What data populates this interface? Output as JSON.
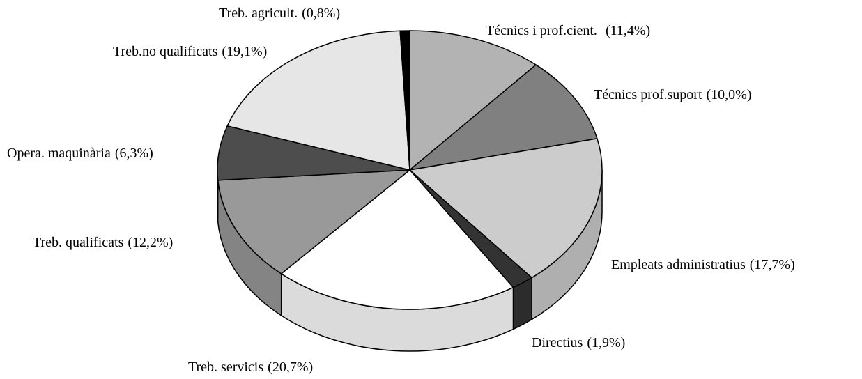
{
  "chart_data": {
    "type": "pie",
    "categories": [
      "Técnics i prof.cient.",
      "Técnics prof.suport",
      "Empleats administratius",
      "Directius",
      "Treb. servicis",
      "Treb. qualificats",
      "Opera. maquinària",
      "Treb.no qualificats",
      "Treb. agricult."
    ],
    "values": [
      11.4,
      10.0,
      17.7,
      1.9,
      20.7,
      12.2,
      6.3,
      19.1,
      0.8
    ],
    "value_labels": [
      "(11,4%)",
      "(10,0%)",
      "(17,7%)",
      "(1,9%)",
      "(20,7%)",
      "(12,2%)",
      "(6,3%)",
      "(19,1%)",
      "(0,8%)"
    ],
    "colors": [
      "#b3b3b3",
      "#808080",
      "#cccccc",
      "#333333",
      "#ffffff",
      "#999999",
      "#4d4d4d",
      "#e6e6e6",
      "#000000"
    ]
  }
}
